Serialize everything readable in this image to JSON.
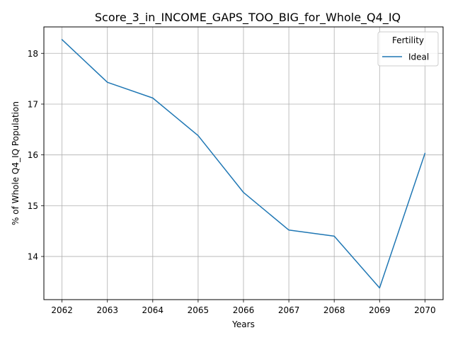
{
  "chart_data": {
    "type": "line",
    "title": "Score_3_in_INCOME_GAPS_TOO_BIG_for_Whole_Q4_IQ",
    "xlabel": "Years",
    "ylabel": "% of Whole Q4_IQ Population",
    "x": [
      2062,
      2063,
      2064,
      2065,
      2066,
      2067,
      2068,
      2069,
      2070
    ],
    "xticks": [
      "2062",
      "2063",
      "2064",
      "2065",
      "2066",
      "2067",
      "2068",
      "2069",
      "2070"
    ],
    "yticks": [
      "14",
      "15",
      "16",
      "17",
      "18"
    ],
    "xlim": [
      2061.6,
      2070.4
    ],
    "ylim": [
      13.15,
      18.52
    ],
    "grid": true,
    "legend": {
      "title": "Fertility",
      "placement": "top-right"
    },
    "series": [
      {
        "name": "Ideal",
        "color": "#1f77b4",
        "values": [
          18.27,
          17.43,
          17.12,
          16.38,
          15.26,
          14.52,
          14.4,
          13.38,
          16.03
        ]
      }
    ]
  }
}
